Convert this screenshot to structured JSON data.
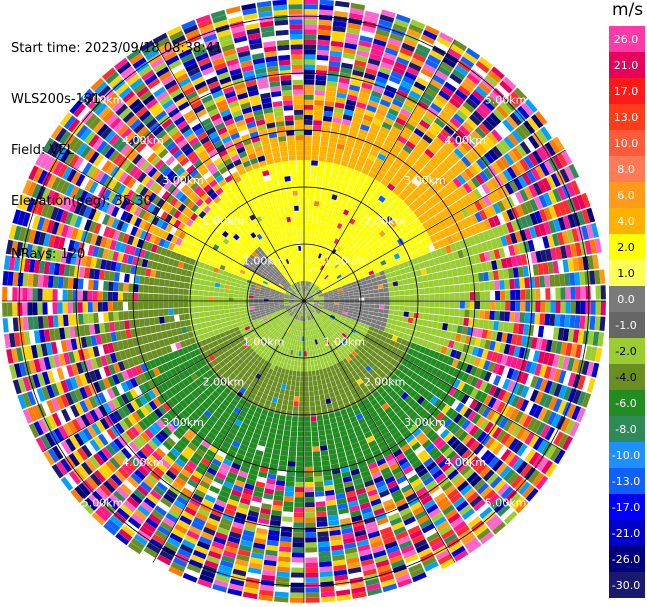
{
  "header": {
    "start_time": "Start time: 2023/09/18 08:38:41",
    "instrument": "WLS200s-181",
    "field": "Field: VEL",
    "elevation": "Elevation(deg): 35.30",
    "nrays": "NRays: 120"
  },
  "colorbar": {
    "unit": "m/s",
    "ticks": [
      "26.0",
      "21.0",
      "17.0",
      "13.0",
      "10.0",
      "8.0",
      "6.0",
      "4.0",
      "2.0",
      "1.0",
      "0.0",
      "-1.0",
      "-2.0",
      "-4.0",
      "-6.0",
      "-8.0",
      "-10.0",
      "-13.0",
      "-17.0",
      "-21.0",
      "-26.0",
      "-30.0"
    ],
    "colors": [
      "#ff3aa6",
      "#e8005a",
      "#ff1a1a",
      "#ff3c1a",
      "#ff5a3a",
      "#ff7a55",
      "#ff9a1a",
      "#ffb000",
      "#ffff00",
      "#ffff55",
      "#7a7a7a",
      "#666666",
      "#9acd32",
      "#6b8e23",
      "#228b22",
      "#2e8b57",
      "#1e90ff",
      "#1060ff",
      "#0000ff",
      "#0000cd",
      "#000080",
      "#191970"
    ]
  },
  "chart_data": {
    "type": "ppi-radar",
    "field": "VEL",
    "units": "m/s",
    "rays": 120,
    "range_rings_km": [
      1.0,
      2.0,
      3.0,
      4.0,
      5.0
    ],
    "ring_labels": [
      "1.00km",
      "2.00km",
      "3.00km",
      "4.00km",
      "5.00km"
    ],
    "spokes_deg": [
      0,
      30,
      60,
      90,
      120,
      150,
      180,
      210,
      240,
      270,
      300,
      330
    ],
    "max_range_km": 5.3,
    "colorbar_range": [
      -30,
      26
    ]
  }
}
